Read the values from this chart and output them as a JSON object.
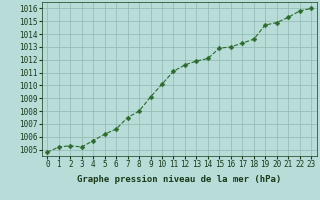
{
  "x": [
    0,
    1,
    2,
    3,
    4,
    5,
    6,
    7,
    8,
    9,
    10,
    11,
    12,
    13,
    14,
    15,
    16,
    17,
    18,
    19,
    20,
    21,
    22,
    23
  ],
  "y": [
    1004.8,
    1005.2,
    1005.3,
    1005.2,
    1005.7,
    1006.2,
    1006.6,
    1007.5,
    1008.0,
    1009.1,
    1010.1,
    1011.1,
    1011.6,
    1011.9,
    1012.1,
    1012.9,
    1013.0,
    1013.3,
    1013.6,
    1014.7,
    1014.9,
    1015.3,
    1015.8,
    1016.0
  ],
  "line_color": "#2d6a2d",
  "marker": "D",
  "marker_size": 2.5,
  "linewidth": 0.8,
  "linestyle": "--",
  "background_color": "#b8dcd8",
  "grid_color": "#90b8b4",
  "xlabel": "Graphe pression niveau de la mer (hPa)",
  "xlabel_fontsize": 6.5,
  "xlabel_color": "#1a3a1a",
  "tick_label_color": "#1a3a1a",
  "tick_fontsize": 5.5,
  "ylim": [
    1004.5,
    1016.5
  ],
  "yticks": [
    1005,
    1006,
    1007,
    1008,
    1009,
    1010,
    1011,
    1012,
    1013,
    1014,
    1015,
    1016
  ],
  "xlim": [
    -0.5,
    23.5
  ],
  "xticks": [
    0,
    1,
    2,
    3,
    4,
    5,
    6,
    7,
    8,
    9,
    10,
    11,
    12,
    13,
    14,
    15,
    16,
    17,
    18,
    19,
    20,
    21,
    22,
    23
  ],
  "xtick_labels": [
    "0",
    "1",
    "2",
    "3",
    "4",
    "5",
    "6",
    "7",
    "8",
    "9",
    "10",
    "11",
    "12",
    "13",
    "14",
    "15",
    "16",
    "17",
    "18",
    "19",
    "20",
    "21",
    "22",
    "23"
  ]
}
